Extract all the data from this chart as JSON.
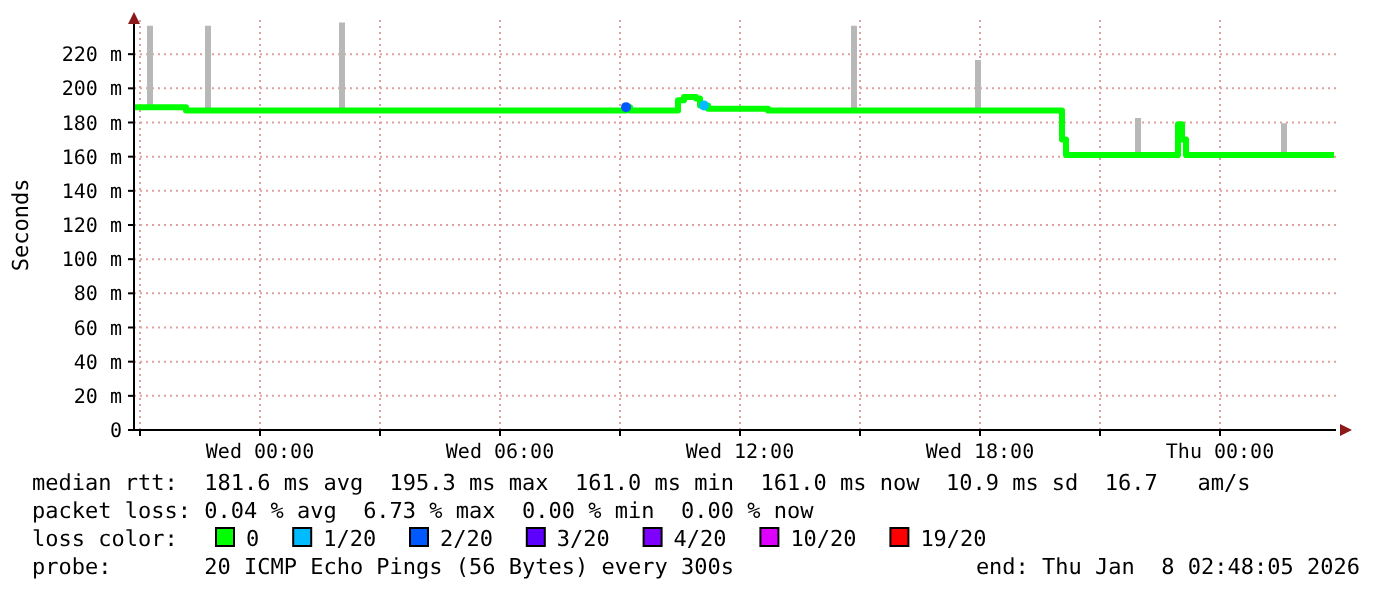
{
  "chart_data": {
    "type": "step",
    "ylabel": "Seconds",
    "legend": "bottom",
    "legend_title": "loss color:",
    "grid": true,
    "xlim": [
      "2026-01-06T20:51",
      "2026-01-08T02:54"
    ],
    "xticks": [
      {
        "value": "2026-01-06T21:00",
        "label": null
      },
      {
        "value": "2026-01-07T00:00",
        "label": "Wed 00:00"
      },
      {
        "value": "2026-01-07T03:00",
        "label": null
      },
      {
        "value": "2026-01-07T06:00",
        "label": "Wed 06:00"
      },
      {
        "value": "2026-01-07T09:00",
        "label": null
      },
      {
        "value": "2026-01-07T12:00",
        "label": "Wed 12:00"
      },
      {
        "value": "2026-01-07T15:00",
        "label": null
      },
      {
        "value": "2026-01-07T18:00",
        "label": "Wed 18:00"
      },
      {
        "value": "2026-01-07T21:00",
        "label": null
      },
      {
        "value": "2026-01-08T00:00",
        "label": "Thu 00:00"
      }
    ],
    "ylim": [
      0,
      240
    ],
    "yticks": [
      0,
      {
        "value": 20,
        "label": "20 m"
      },
      {
        "value": 40,
        "label": "40 m"
      },
      {
        "value": 60,
        "label": "60 m"
      },
      {
        "value": 80,
        "label": "80 m"
      },
      {
        "value": 100,
        "label": "100 m"
      },
      {
        "value": 120,
        "label": "120 m"
      },
      {
        "value": 140,
        "label": "140 m"
      },
      {
        "value": 160,
        "label": "160 m"
      },
      {
        "value": 180,
        "label": "180 m"
      },
      {
        "value": 200,
        "label": "200 m"
      },
      {
        "value": 220,
        "label": "220 m"
      }
    ],
    "series": [
      {
        "name": "0",
        "color": "#00ff00",
        "x": [
          "2026-01-06T20:51",
          "2026-01-06T21:12",
          "2026-01-06T21:18",
          "2026-01-06T22:09",
          "2026-01-06T22:39",
          "2026-01-06T22:45",
          "2026-01-07T02:00",
          "2026-01-07T02:06",
          "2026-01-07T09:09",
          "2026-01-07T09:15",
          "2026-01-07T10:27",
          "2026-01-07T10:36",
          "2026-01-07T10:45",
          "2026-01-07T10:54",
          "2026-01-07T11:00",
          "2026-01-07T11:12",
          "2026-01-07T12:42",
          "2026-01-07T14:48",
          "2026-01-07T14:54",
          "2026-01-07T17:54",
          "2026-01-07T18:00",
          "2026-01-07T20:03",
          "2026-01-07T20:09",
          "2026-01-07T21:54",
          "2026-01-07T22:00",
          "2026-01-07T22:57",
          "2026-01-07T23:03",
          "2026-01-07T23:09",
          "2026-01-08T01:33",
          "2026-01-08T01:39",
          "2026-01-08T02:51"
        ],
        "values": [
          189,
          189,
          189,
          187,
          187,
          187,
          187,
          187,
          189,
          187,
          193,
          195,
          195,
          194,
          190,
          188,
          187,
          187,
          187,
          187,
          187,
          170,
          161,
          161,
          161,
          179,
          170,
          161,
          161,
          161,
          161
        ],
        "lower": [
          189,
          189,
          189,
          187,
          187,
          187,
          187,
          187,
          189,
          187,
          193,
          195,
          195,
          194,
          190,
          188,
          187,
          187,
          187,
          187,
          187,
          170,
          161,
          161,
          161,
          179,
          170,
          161,
          161,
          161,
          161
        ],
        "upper": [
          189,
          236,
          189,
          187,
          236,
          187,
          238,
          187,
          189,
          187,
          193,
          195,
          195,
          194,
          190,
          188,
          187,
          236,
          187,
          216,
          187,
          170,
          161,
          182,
          161,
          179,
          170,
          161,
          179,
          161,
          161
        ]
      },
      {
        "name": "1/20",
        "color": "#00bbff",
        "type": "scatter",
        "x": [
          "2026-01-07T11:06"
        ],
        "values": [
          190
        ]
      },
      {
        "name": "2/20",
        "color": "#0059ff",
        "type": "scatter",
        "x": [
          "2026-01-07T09:09"
        ],
        "values": [
          189
        ]
      },
      {
        "name": "3/20",
        "color": "#5e00ff",
        "type": "scatter"
      },
      {
        "name": "4/20",
        "color": "#7e00ff",
        "type": "scatter"
      },
      {
        "name": "10/20",
        "color": "#dd00ff",
        "type": "scatter"
      },
      {
        "name": "19/20",
        "color": "#ff0000",
        "type": "scatter"
      }
    ],
    "annotations": [
      "median rtt:  181.6 ms avg  195.3 ms max  161.0 ms min  161.0 ms now  10.9 ms sd  16.7   am/s",
      "packet loss: 0.04 % avg  6.73 % max  0.00 % min  0.00 % now",
      "probe:       20 ICMP Echo Pings (56 Bytes) every 300s",
      "end: Thu Jan  8 02:48:05 2026"
    ]
  }
}
